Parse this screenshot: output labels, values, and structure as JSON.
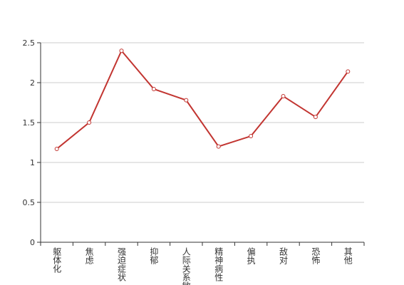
{
  "chart_data": {
    "type": "line",
    "categories": [
      "躯体化",
      "焦虑",
      "强迫症状",
      "抑郁",
      "人际关系敏感",
      "精神病性",
      "偏执",
      "敌对",
      "恐怖",
      "其他"
    ],
    "values": [
      1.17,
      1.5,
      2.4,
      1.92,
      1.78,
      1.2,
      1.33,
      1.83,
      1.57,
      2.14
    ],
    "color": "#c23531",
    "ylim": [
      0,
      2.5
    ],
    "yticks": [
      0,
      0.5,
      1,
      1.5,
      2,
      2.5
    ],
    "grid": true
  }
}
